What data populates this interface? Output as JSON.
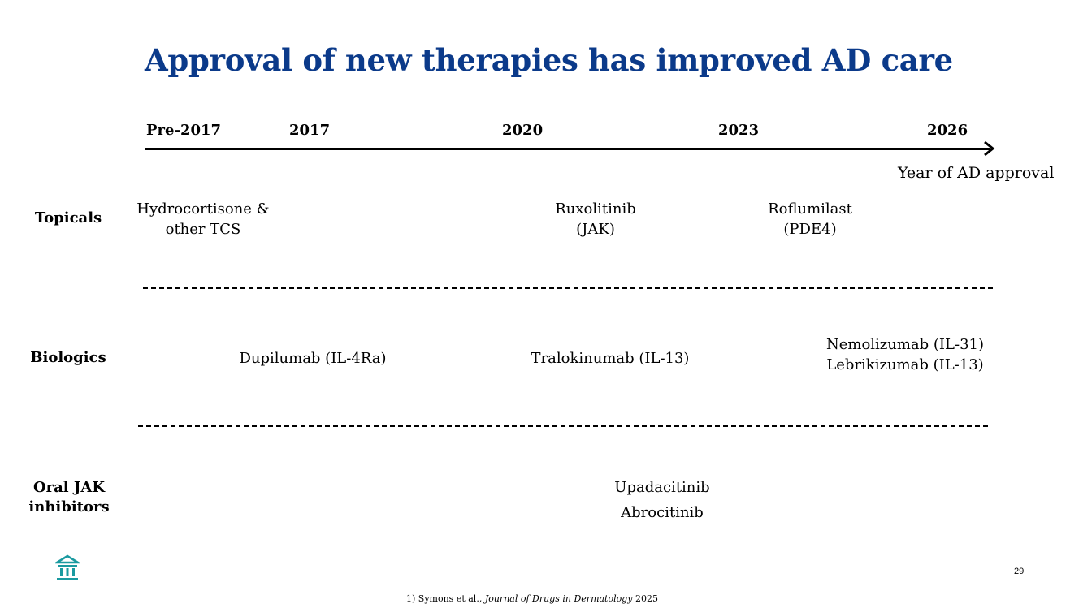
{
  "title": "Approval of new therapies has improved AD care",
  "timeline": {
    "years": [
      "Pre-2017",
      "2017",
      "2020",
      "2023",
      "2026"
    ],
    "axis_caption": "Year of AD approval"
  },
  "rows": [
    {
      "label": "Topicals",
      "therapies": [
        {
          "lines": [
            "Hydrocortisone &",
            "other TCS"
          ]
        },
        {
          "lines": [
            "Ruxolitinib",
            "(JAK)"
          ]
        },
        {
          "lines": [
            "Roflumilast",
            "(PDE4)"
          ]
        }
      ]
    },
    {
      "label": "Biologics",
      "therapies": [
        {
          "lines": [
            "Dupilumab (IL-4Ra)"
          ]
        },
        {
          "lines": [
            "Tralokinumab (IL-13)"
          ]
        },
        {
          "lines": [
            "Nemolizumab (IL-31)",
            "Lebrikizumab (IL-13)"
          ]
        }
      ]
    },
    {
      "label_lines": [
        "Oral JAK",
        "inhibitors"
      ],
      "therapies": [
        {
          "lines": [
            "Upadacitinib",
            "Abrocitinib"
          ]
        }
      ]
    }
  ],
  "footer": {
    "page_number": "29",
    "footnote_prefix": "1)  Symons et al., ",
    "footnote_journal": "Journal of Drugs in Dermatology",
    "footnote_year": " 2025"
  },
  "icons": {
    "logo": "institution-building-icon",
    "axis_arrow": "arrow-right-icon"
  },
  "colors": {
    "title": "#0b3a8a",
    "logo": "#1a9aa0"
  }
}
